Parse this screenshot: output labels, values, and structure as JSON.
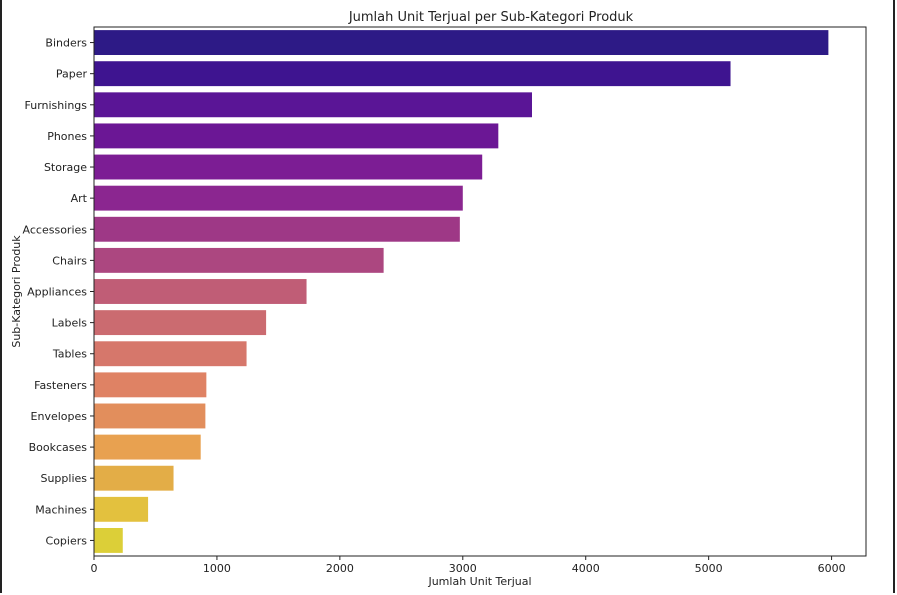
{
  "chart_data": {
    "type": "bar",
    "orientation": "horizontal",
    "title": "Jumlah Unit Terjual per Sub-Kategori Produk",
    "xlabel": "Jumlah Unit Terjual",
    "ylabel": "Sub-Kategori Produk",
    "xlim": [
      0,
      6280
    ],
    "xticks": [
      0,
      1000,
      2000,
      3000,
      4000,
      5000,
      6000
    ],
    "grid": false,
    "palette": "plasma",
    "categories": [
      "Binders",
      "Paper",
      "Furnishings",
      "Phones",
      "Storage",
      "Art",
      "Accessories",
      "Chairs",
      "Appliances",
      "Labels",
      "Tables",
      "Fasteners",
      "Envelopes",
      "Bookcases",
      "Supplies",
      "Machines",
      "Copiers"
    ],
    "values": [
      5974,
      5178,
      3563,
      3289,
      3158,
      3000,
      2976,
      2356,
      1729,
      1400,
      1241,
      914,
      906,
      868,
      647,
      440,
      234
    ],
    "colors": [
      "#2d1a86",
      "#3e1490",
      "#5a1596",
      "#6b1795",
      "#7c1d94",
      "#8b2690",
      "#9e3886",
      "#ac4780",
      "#c05d76",
      "#cb6b70",
      "#d6776b",
      "#df8264",
      "#e28e5c",
      "#e8a150",
      "#e3ad47",
      "#e3c13e",
      "#dccf38"
    ]
  }
}
